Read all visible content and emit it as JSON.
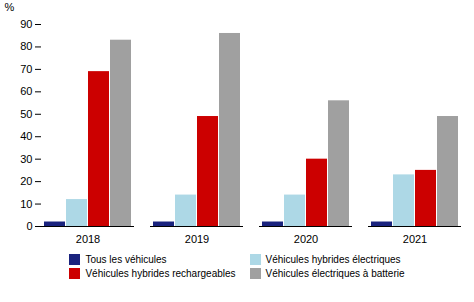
{
  "chart_data": {
    "type": "bar",
    "categories": [
      "2018",
      "2019",
      "2020",
      "2021"
    ],
    "series": [
      {
        "name": "Tous les véhicules",
        "color": "#1a237e",
        "values": [
          2,
          2,
          2,
          2
        ]
      },
      {
        "name": "Véhicules hybrides électriques",
        "color": "#add8e6",
        "values": [
          12,
          14,
          14,
          23
        ]
      },
      {
        "name": "Véhicules hybrides rechargeables",
        "color": "#cc0000",
        "values": [
          69,
          49,
          30,
          25
        ]
      },
      {
        "name": "Véhicules électriques à batterie",
        "color": "#a0a0a0",
        "values": [
          83,
          86,
          56,
          49
        ]
      }
    ],
    "ylabel": "%",
    "ylim": [
      0,
      90
    ],
    "yticks": [
      0,
      10,
      20,
      30,
      40,
      50,
      60,
      70,
      80,
      90
    ],
    "grid": false,
    "legend": "bottom"
  }
}
